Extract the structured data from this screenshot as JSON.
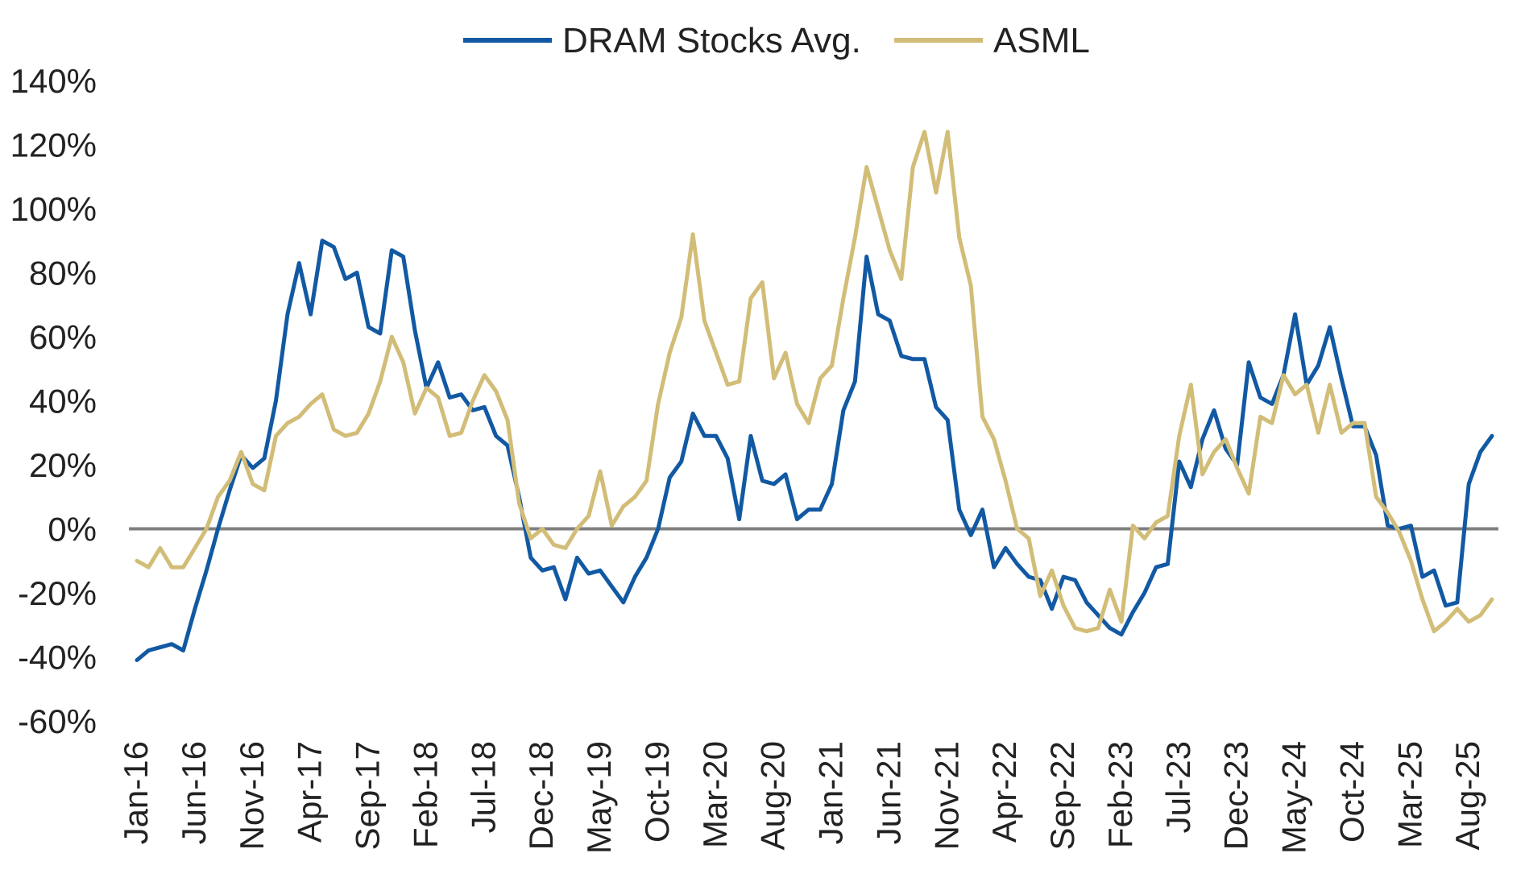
{
  "chart_data": {
    "type": "line",
    "title": "",
    "xlabel": "",
    "ylabel": "",
    "ylim": [
      -60,
      140
    ],
    "y_ticks": [
      140,
      120,
      100,
      80,
      60,
      40,
      20,
      0,
      -20,
      -40,
      -60
    ],
    "y_tick_labels": [
      "140%",
      "120%",
      "100%",
      "80%",
      "60%",
      "40%",
      "20%",
      "0%",
      "-20%",
      "-40%",
      "-60%"
    ],
    "x_start": "Jan-16",
    "x_end": "Aug-25",
    "x_tick_labels": [
      "Jan-16",
      "Jun-16",
      "Nov-16",
      "Apr-17",
      "Sep-17",
      "Feb-18",
      "Jul-18",
      "Dec-18",
      "May-19",
      "Oct-19",
      "Mar-20",
      "Aug-20",
      "Jan-21",
      "Jun-21",
      "Nov-21",
      "Apr-22",
      "Sep-22",
      "Feb-23",
      "Jul-23",
      "Dec-23",
      "May-24",
      "Oct-24",
      "Mar-25",
      "Aug-25"
    ],
    "legend_position": "top-center",
    "grid": false,
    "zero_line": true,
    "colors": {
      "zero_line": "#7f7f7f",
      "axis_text": "#222222"
    },
    "series": [
      {
        "name": "DRAM Stocks Avg.",
        "color": "#1259a3",
        "values": [
          -41,
          -38,
          -37,
          -36,
          -38,
          -25,
          -13,
          0,
          12,
          23,
          19,
          22,
          40,
          67,
          83,
          67,
          90,
          88,
          78,
          80,
          63,
          61,
          87,
          85,
          62,
          44,
          52,
          41,
          42,
          37,
          38,
          29,
          26,
          10,
          -9,
          -13,
          -12,
          -22,
          -9,
          -14,
          -13,
          -18,
          -23,
          -15,
          -9,
          0,
          16,
          21,
          36,
          29,
          29,
          22,
          3,
          29,
          15,
          14,
          17,
          3,
          6,
          6,
          14,
          37,
          46,
          85,
          67,
          65,
          54,
          53,
          53,
          38,
          34,
          6,
          -2,
          6,
          -12,
          -6,
          -11,
          -15,
          -16,
          -25,
          -15,
          -16,
          -23,
          -27,
          -31,
          -33,
          -26,
          -20,
          -12,
          -11,
          21,
          13,
          28,
          37,
          25,
          20,
          52,
          41,
          39,
          48,
          67,
          45,
          51,
          63,
          47,
          32,
          32,
          23,
          1,
          0,
          1,
          -15,
          -13,
          -24,
          -23,
          14,
          24,
          29
        ]
      },
      {
        "name": "ASML",
        "color": "#d2bd78",
        "values": [
          -10,
          -12,
          -6,
          -12,
          -12,
          -6,
          0,
          10,
          15,
          24,
          14,
          12,
          29,
          33,
          35,
          39,
          42,
          31,
          29,
          30,
          36,
          46,
          60,
          52,
          36,
          44,
          41,
          29,
          30,
          40,
          48,
          43,
          34,
          8,
          -3,
          0,
          -5,
          -6,
          0,
          4,
          18,
          1,
          7,
          10,
          15,
          39,
          55,
          66,
          92,
          65,
          55,
          45,
          46,
          72,
          77,
          47,
          55,
          39,
          33,
          47,
          51,
          72,
          91,
          113,
          100,
          87,
          78,
          113,
          124,
          105,
          124,
          91,
          76,
          35,
          28,
          15,
          0,
          -3,
          -21,
          -13,
          -24,
          -31,
          -32,
          -31,
          -19,
          -29,
          1,
          -3,
          2,
          4,
          29,
          45,
          17,
          24,
          28,
          19,
          11,
          35,
          33,
          48,
          42,
          45,
          30,
          45,
          30,
          33,
          33,
          10,
          5,
          -1,
          -10,
          -22,
          -32,
          -29,
          -25,
          -29,
          -27,
          -22
        ]
      }
    ]
  }
}
